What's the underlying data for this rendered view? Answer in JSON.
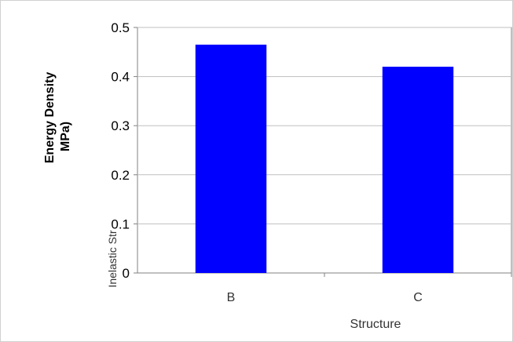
{
  "chart_data": {
    "type": "bar",
    "categories": [
      "B",
      "C"
    ],
    "values": [
      0.465,
      0.42
    ],
    "xlabel": "Structure",
    "ylabel_partial_top": "Energy Density",
    "ylabel_partial_unit": "MPa)",
    "ylabel_lower": "Inelastic Str",
    "ylim": [
      0,
      0.5
    ],
    "yticks": [
      0.5,
      0.4,
      0.3,
      0.2,
      0.1,
      0
    ],
    "ytick_labels": [
      "0.5",
      "0.4",
      "0.3",
      "0.2",
      "0.1",
      "0"
    ],
    "grid": true,
    "bar_color": "#0000ff",
    "axis_color": "#808080",
    "gridline_color": "#bfbfbf"
  }
}
